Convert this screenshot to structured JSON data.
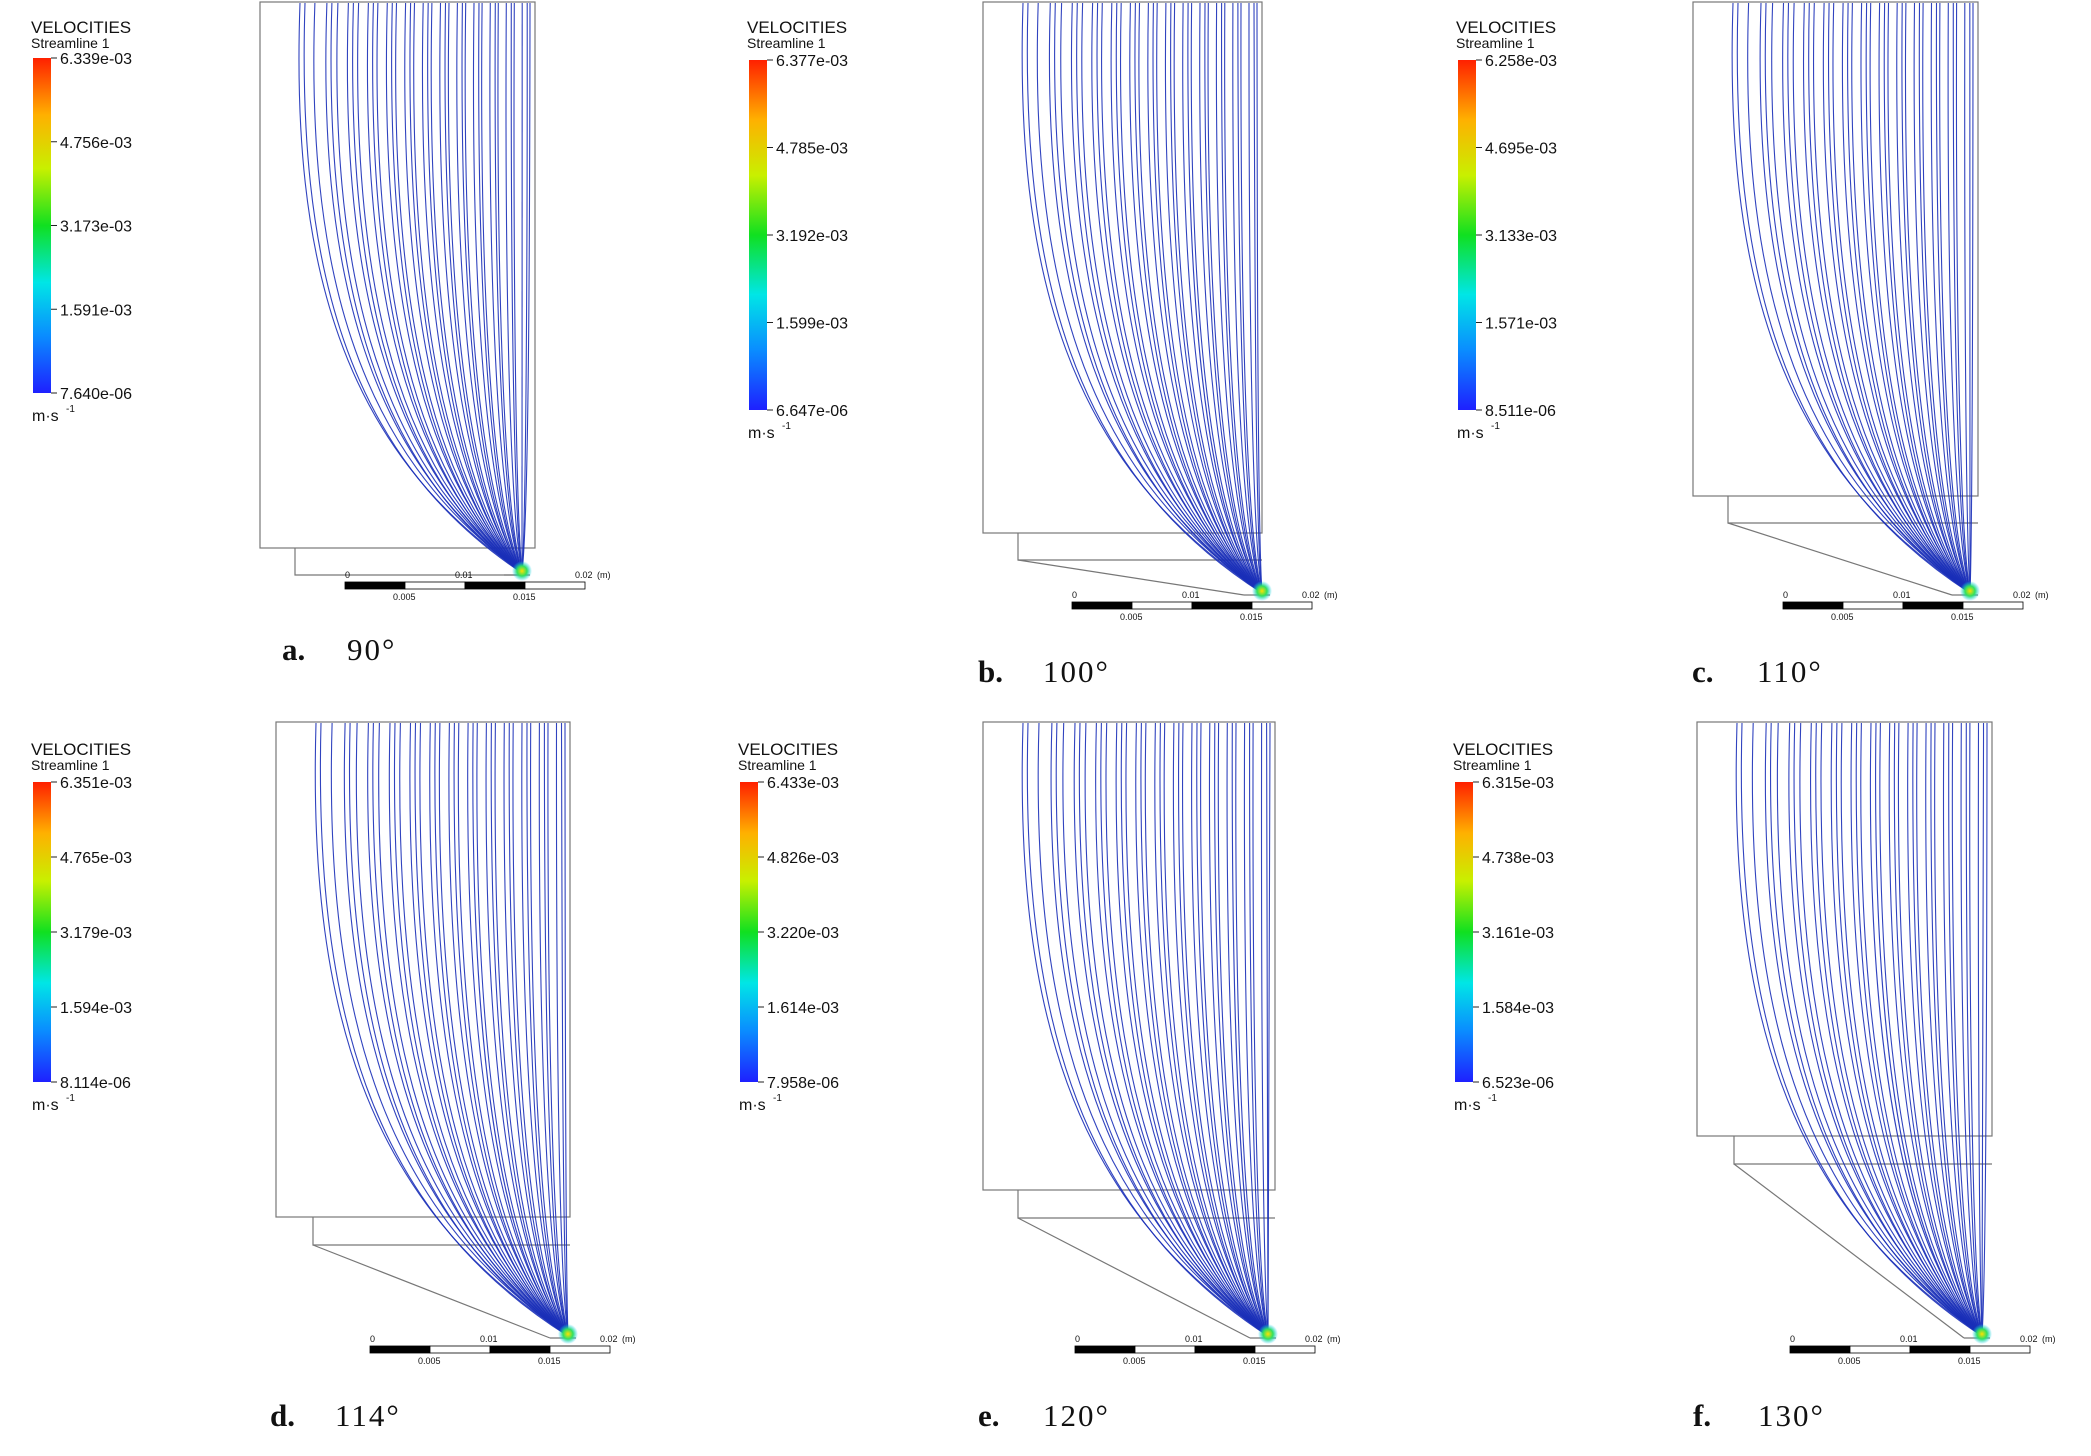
{
  "colors": {
    "colormap": [
      "#1e20ff",
      "#0a8cff",
      "#00e6e6",
      "#10e020",
      "#c8f000",
      "#ffb000",
      "#ff2000"
    ],
    "streamline": "#1a2fb8"
  },
  "legend_common": {
    "title": "VELOCITIES",
    "subtitle": "Streamline 1",
    "unit": "m·s",
    "unit_exp": "-1"
  },
  "panels": [
    {
      "label": "a.",
      "angle": "90°",
      "legend_ticks": [
        "6.339e-03",
        "4.756e-03",
        "3.173e-03",
        "1.591e-03",
        "7.640e-06"
      ],
      "scale_bar": {
        "top": [
          "0",
          "0.01",
          "0.02",
          "(m)"
        ],
        "bottom": [
          "0.005",
          "0.015"
        ]
      }
    },
    {
      "label": "b.",
      "angle": "100°",
      "legend_ticks": [
        "6.377e-03",
        "4.785e-03",
        "3.192e-03",
        "1.599e-03",
        "6.647e-06"
      ],
      "scale_bar": {
        "top": [
          "0",
          "0.01",
          "0.02",
          "(m)"
        ],
        "bottom": [
          "0.005",
          "0.015"
        ]
      }
    },
    {
      "label": "c.",
      "angle": "110°",
      "legend_ticks": [
        "6.258e-03",
        "4.695e-03",
        "3.133e-03",
        "1.571e-03",
        "8.511e-06"
      ],
      "scale_bar": {
        "top": [
          "0",
          "0.01",
          "0.02",
          "(m)"
        ],
        "bottom": [
          "0.005",
          "0.015"
        ]
      }
    },
    {
      "label": "d.",
      "angle": "114°",
      "legend_ticks": [
        "6.351e-03",
        "4.765e-03",
        "3.179e-03",
        "1.594e-03",
        "8.114e-06"
      ],
      "scale_bar": {
        "top": [
          "0",
          "0.01",
          "0.02",
          "(m)"
        ],
        "bottom": [
          "0.005",
          "0.015"
        ]
      }
    },
    {
      "label": "e.",
      "angle": "120°",
      "legend_ticks": [
        "6.433e-03",
        "4.826e-03",
        "3.220e-03",
        "1.614e-03",
        "7.958e-06"
      ],
      "scale_bar": {
        "top": [
          "0",
          "0.01",
          "0.02",
          "(m)"
        ],
        "bottom": [
          "0.005",
          "0.015"
        ]
      }
    },
    {
      "label": "f.",
      "angle": "130°",
      "legend_ticks": [
        "6.315e-03",
        "4.738e-03",
        "3.161e-03",
        "1.584e-03",
        "6.523e-06"
      ],
      "scale_bar": {
        "top": [
          "0",
          "0.01",
          "0.02",
          "(m)"
        ],
        "bottom": [
          "0.005",
          "0.015"
        ]
      }
    }
  ]
}
